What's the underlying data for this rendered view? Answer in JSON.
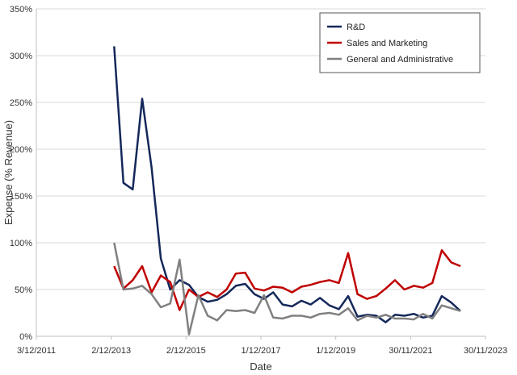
{
  "chart_data": {
    "type": "line",
    "xlabel": "Date",
    "ylabel": "Expense (% Revenue)",
    "x_ticks": [
      "3/12/2011",
      "2/12/2013",
      "2/12/2015",
      "1/12/2017",
      "1/12/2019",
      "30/11/2021",
      "30/11/2023"
    ],
    "x_tick_values": [
      "2011-12-03",
      "2013-12-02",
      "2015-12-02",
      "2017-12-01",
      "2019-12-01",
      "2021-11-30",
      "2023-11-30"
    ],
    "xlim": [
      "2011-12-03",
      "2023-11-30"
    ],
    "y_ticks": [
      "0%",
      "50%",
      "100%",
      "150%",
      "200%",
      "250%",
      "300%",
      "350%"
    ],
    "ylim": [
      0,
      350
    ],
    "grid": {
      "horizontal": true,
      "vertical": false
    },
    "legend_position": "top-right",
    "series": [
      {
        "name": "R&D",
        "color": "#14285a",
        "points": [
          [
            "2013-12-31",
            310
          ],
          [
            "2014-03-31",
            164
          ],
          [
            "2014-06-30",
            157
          ],
          [
            "2014-09-30",
            254
          ],
          [
            "2014-12-31",
            180
          ],
          [
            "2015-03-31",
            83
          ],
          [
            "2015-06-30",
            50
          ],
          [
            "2015-09-30",
            60
          ],
          [
            "2015-12-31",
            55
          ],
          [
            "2016-03-31",
            42
          ],
          [
            "2016-06-30",
            37
          ],
          [
            "2016-09-30",
            39
          ],
          [
            "2016-12-31",
            45
          ],
          [
            "2017-03-31",
            54
          ],
          [
            "2017-06-30",
            56
          ],
          [
            "2017-09-30",
            45
          ],
          [
            "2017-12-31",
            40
          ],
          [
            "2018-03-31",
            47
          ],
          [
            "2018-06-30",
            34
          ],
          [
            "2018-09-30",
            32
          ],
          [
            "2018-12-31",
            38
          ],
          [
            "2019-03-31",
            34
          ],
          [
            "2019-06-30",
            41
          ],
          [
            "2019-09-30",
            33
          ],
          [
            "2019-12-31",
            29
          ],
          [
            "2020-03-31",
            43
          ],
          [
            "2020-06-30",
            21
          ],
          [
            "2020-09-30",
            23
          ],
          [
            "2020-12-31",
            22
          ],
          [
            "2021-03-31",
            15
          ],
          [
            "2021-06-30",
            23
          ],
          [
            "2021-09-30",
            22
          ],
          [
            "2021-12-31",
            24
          ],
          [
            "2022-03-31",
            20
          ],
          [
            "2022-06-30",
            22
          ],
          [
            "2022-09-30",
            43
          ],
          [
            "2022-12-31",
            36
          ],
          [
            "2023-03-31",
            27
          ]
        ]
      },
      {
        "name": "Sales and Marketing",
        "color": "#c00000",
        "points": [
          [
            "2013-12-31",
            75
          ],
          [
            "2014-03-31",
            51
          ],
          [
            "2014-06-30",
            60
          ],
          [
            "2014-09-30",
            75
          ],
          [
            "2014-12-31",
            47
          ],
          [
            "2015-03-31",
            65
          ],
          [
            "2015-06-30",
            58
          ],
          [
            "2015-09-30",
            28
          ],
          [
            "2015-12-31",
            50
          ],
          [
            "2016-03-31",
            42
          ],
          [
            "2016-06-30",
            47
          ],
          [
            "2016-09-30",
            42
          ],
          [
            "2016-12-31",
            50
          ],
          [
            "2017-03-31",
            67
          ],
          [
            "2017-06-30",
            68
          ],
          [
            "2017-09-30",
            51
          ],
          [
            "2017-12-31",
            49
          ],
          [
            "2018-03-31",
            53
          ],
          [
            "2018-06-30",
            52
          ],
          [
            "2018-09-30",
            47
          ],
          [
            "2018-12-31",
            53
          ],
          [
            "2019-03-31",
            55
          ],
          [
            "2019-06-30",
            58
          ],
          [
            "2019-09-30",
            60
          ],
          [
            "2019-12-31",
            57
          ],
          [
            "2020-03-31",
            89
          ],
          [
            "2020-06-30",
            45
          ],
          [
            "2020-09-30",
            40
          ],
          [
            "2020-12-31",
            43
          ],
          [
            "2021-03-31",
            51
          ],
          [
            "2021-06-30",
            60
          ],
          [
            "2021-09-30",
            50
          ],
          [
            "2021-12-31",
            54
          ],
          [
            "2022-03-31",
            52
          ],
          [
            "2022-06-30",
            57
          ],
          [
            "2022-09-30",
            92
          ],
          [
            "2022-12-31",
            79
          ],
          [
            "2023-03-31",
            75
          ]
        ]
      },
      {
        "name": "General and Administrative",
        "color": "#808080",
        "points": [
          [
            "2013-12-31",
            100
          ],
          [
            "2014-03-31",
            50
          ],
          [
            "2014-06-30",
            51
          ],
          [
            "2014-09-30",
            54
          ],
          [
            "2014-12-31",
            45
          ],
          [
            "2015-03-31",
            31
          ],
          [
            "2015-06-30",
            35
          ],
          [
            "2015-09-30",
            82
          ],
          [
            "2015-12-31",
            2
          ],
          [
            "2016-03-31",
            44
          ],
          [
            "2016-06-30",
            22
          ],
          [
            "2016-09-30",
            17
          ],
          [
            "2016-12-31",
            28
          ],
          [
            "2017-03-31",
            27
          ],
          [
            "2017-06-30",
            28
          ],
          [
            "2017-09-30",
            25
          ],
          [
            "2017-12-31",
            44
          ],
          [
            "2018-03-31",
            20
          ],
          [
            "2018-06-30",
            19
          ],
          [
            "2018-09-30",
            22
          ],
          [
            "2018-12-31",
            22
          ],
          [
            "2019-03-31",
            20
          ],
          [
            "2019-06-30",
            24
          ],
          [
            "2019-09-30",
            25
          ],
          [
            "2019-12-31",
            23
          ],
          [
            "2020-03-31",
            30
          ],
          [
            "2020-06-30",
            17
          ],
          [
            "2020-09-30",
            22
          ],
          [
            "2020-12-31",
            20
          ],
          [
            "2021-03-31",
            23
          ],
          [
            "2021-06-30",
            19
          ],
          [
            "2021-09-30",
            19
          ],
          [
            "2021-12-31",
            18
          ],
          [
            "2022-03-31",
            24
          ],
          [
            "2022-06-30",
            19
          ],
          [
            "2022-09-30",
            33
          ],
          [
            "2022-12-31",
            30
          ],
          [
            "2023-03-31",
            27
          ]
        ]
      }
    ]
  }
}
